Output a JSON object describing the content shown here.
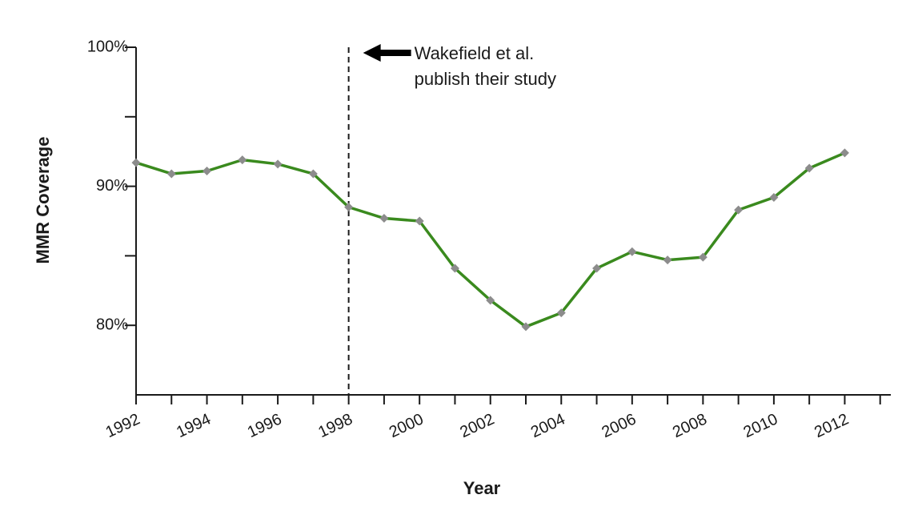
{
  "chart_data": {
    "type": "line",
    "x_label": "Year",
    "y_label": "MMR Coverage",
    "x": [
      1992,
      1993,
      1994,
      1995,
      1996,
      1997,
      1998,
      1999,
      2000,
      2001,
      2002,
      2003,
      2004,
      2005,
      2006,
      2007,
      2008,
      2009,
      2010,
      2011,
      2012
    ],
    "series": [
      {
        "color": "#3a8a1e",
        "marker_color": "#8c8c8c",
        "values": [
          91.7,
          90.9,
          91.1,
          91.9,
          91.6,
          90.9,
          88.5,
          87.7,
          87.5,
          84.1,
          81.8,
          79.9,
          80.9,
          84.1,
          85.3,
          84.7,
          84.9,
          88.3,
          89.2,
          91.3,
          92.4
        ]
      }
    ],
    "xlim": [
      1992,
      2013.3
    ],
    "xticks": [
      1992,
      1994,
      1996,
      1998,
      2000,
      2002,
      2004,
      2006,
      2008,
      2010,
      2012
    ],
    "xminorticks": [
      1993,
      1995,
      1997,
      1999,
      2001,
      2003,
      2005,
      2007,
      2009,
      2011,
      2013
    ],
    "ylim": [
      75,
      100
    ],
    "yticks": [
      {
        "value": 80,
        "label": "80%"
      },
      {
        "value": 90,
        "label": "90%"
      },
      {
        "value": 100,
        "label": "100%"
      }
    ],
    "yminorticks": [
      85,
      95
    ],
    "annotation": {
      "x": 1998,
      "lines": [
        "Wakefield et al.",
        "publish their study"
      ]
    }
  }
}
